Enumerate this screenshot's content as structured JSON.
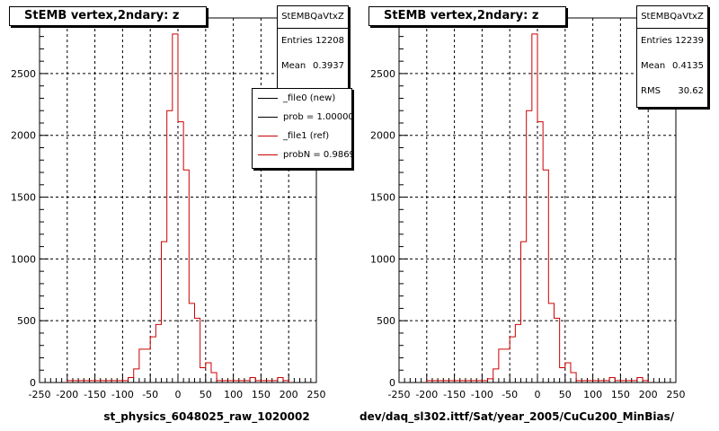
{
  "chart_data": [
    {
      "type": "histogram",
      "title": "StEMB  vertex,2ndary: z",
      "xlabel": "st_physics_6048025_raw_1020002",
      "ylabel": "",
      "xlim": [
        -250,
        250
      ],
      "ylim": [
        0,
        2950
      ],
      "x_ticks": [
        -250,
        -200,
        -150,
        -100,
        -50,
        0,
        50,
        100,
        150,
        200,
        250
      ],
      "y_ticks": [
        0,
        500,
        1000,
        1500,
        2000,
        2500
      ],
      "grid": true,
      "bin_width": 10,
      "bin_edges_start": -200,
      "series": [
        {
          "name": "_file1 (ref)",
          "color": "#cc0000",
          "values": [
            15,
            15,
            15,
            15,
            15,
            15,
            15,
            15,
            15,
            15,
            15,
            40,
            110,
            270,
            270,
            370,
            470,
            1140,
            2200,
            2820,
            2110,
            1720,
            640,
            520,
            120,
            160,
            80,
            15,
            15,
            15,
            15,
            15,
            15,
            40,
            15,
            15,
            15,
            15,
            40,
            15
          ]
        }
      ],
      "stats": {
        "name": "StEMBQaVtxZ",
        "entries_label": "Entries",
        "entries": "12208",
        "mean_label": "Mean",
        "mean": "0.3937"
      },
      "legend": {
        "position": "top-right",
        "entries": [
          {
            "label": "_file0 (new)",
            "color": "#000000"
          },
          {
            "label": "prob = 1.000000",
            "color": "#000000"
          },
          {
            "label": "_file1 (ref)",
            "color": "#cc0000"
          },
          {
            "label": "probN = 0.986949",
            "color": "#cc0000"
          }
        ]
      }
    },
    {
      "type": "histogram",
      "title": "StEMB  vertex,2ndary: z",
      "xlabel": "dev/daq_sl302.ittf/Sat/year_2005/CuCu200_MinBias/",
      "ylabel": "",
      "xlim": [
        -250,
        250
      ],
      "ylim": [
        0,
        2950
      ],
      "x_ticks": [
        -250,
        -200,
        -150,
        -100,
        -50,
        0,
        50,
        100,
        150,
        200,
        250
      ],
      "y_ticks": [
        0,
        500,
        1000,
        1500,
        2000,
        2500
      ],
      "grid": true,
      "bin_width": 10,
      "bin_edges_start": -200,
      "series": [
        {
          "name": "",
          "color": "#cc0000",
          "values": [
            15,
            15,
            15,
            15,
            15,
            15,
            15,
            15,
            15,
            15,
            15,
            30,
            110,
            270,
            270,
            370,
            470,
            1140,
            2200,
            2820,
            2110,
            1720,
            640,
            520,
            120,
            160,
            80,
            15,
            15,
            15,
            15,
            15,
            15,
            40,
            15,
            15,
            15,
            15,
            40,
            15
          ]
        }
      ],
      "stats": {
        "name": "StEMBQaVtxZ",
        "entries_label": "Entries",
        "entries": "12239",
        "mean_label": "Mean",
        "mean": "0.4135",
        "rms_label": "RMS",
        "rms": "30.62"
      }
    }
  ]
}
